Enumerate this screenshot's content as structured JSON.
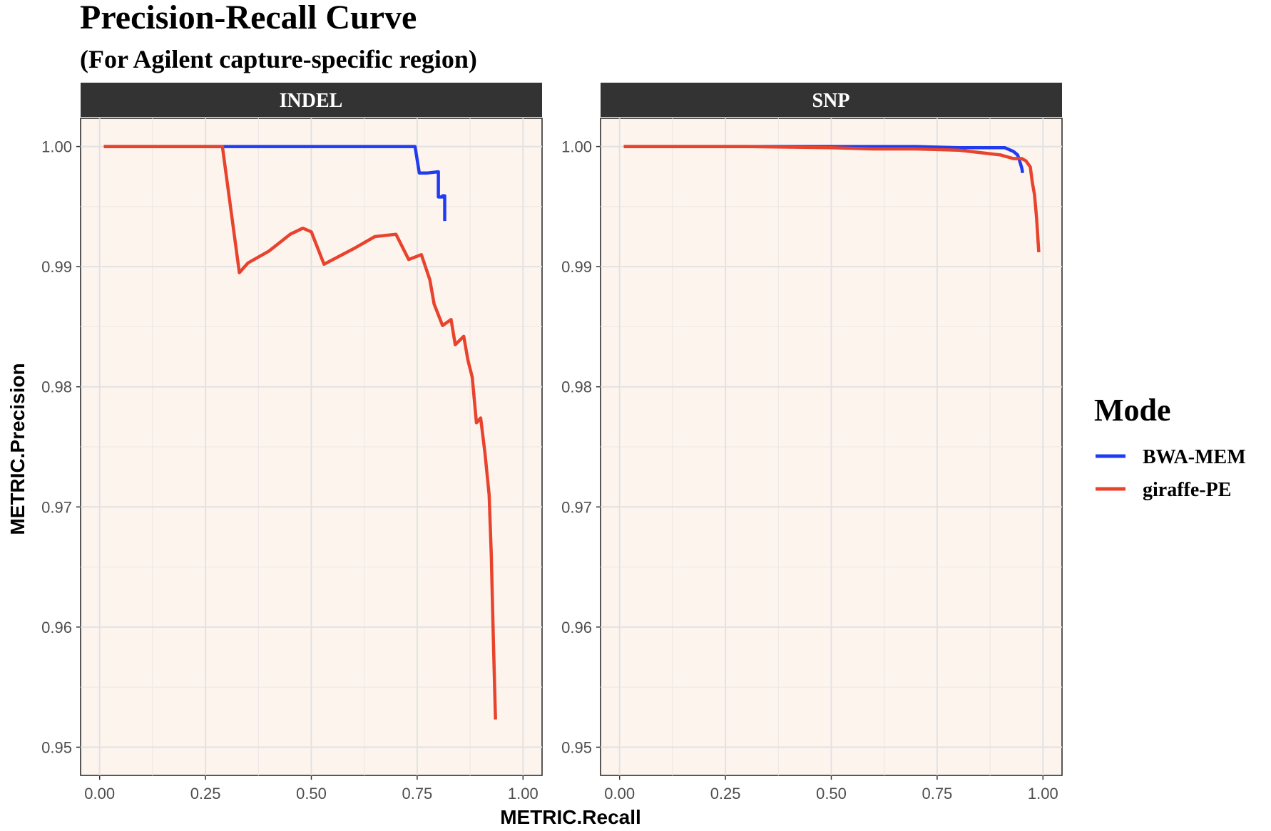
{
  "chart_data": {
    "type": "line",
    "title": "Precision-Recall Curve",
    "subtitle": "(For Agilent capture-specific region)",
    "xlabel": "METRIC.Recall",
    "ylabel": "METRIC.Precision",
    "xlim": [
      0,
      1
    ],
    "ylim": [
      0.95,
      1.0
    ],
    "x_ticks": [
      "0.00",
      "0.25",
      "0.50",
      "0.75",
      "1.00"
    ],
    "y_ticks": [
      "0.95",
      "0.96",
      "0.97",
      "0.98",
      "0.99",
      "1.00"
    ],
    "grid": true,
    "legend": {
      "title": "Mode",
      "position": "right",
      "entries": [
        {
          "name": "BWA-MEM",
          "color": "#1f3cf0"
        },
        {
          "name": "giraffe-PE",
          "color": "#e8432d"
        }
      ]
    },
    "panels": [
      {
        "label": "INDEL",
        "series": [
          {
            "name": "BWA-MEM",
            "x": [
              0.01,
              0.745,
              0.755,
              0.775,
              0.8,
              0.8,
              0.81,
              0.81,
              0.815,
              0.815
            ],
            "y": [
              1.0,
              1.0,
              0.9978,
              0.9978,
              0.9979,
              0.9958,
              0.9958,
              0.9959,
              0.9959,
              0.9938
            ]
          },
          {
            "name": "giraffe-PE",
            "x": [
              0.01,
              0.29,
              0.33,
              0.35,
              0.4,
              0.45,
              0.48,
              0.5,
              0.53,
              0.6,
              0.65,
              0.7,
              0.73,
              0.76,
              0.78,
              0.79,
              0.81,
              0.83,
              0.84,
              0.86,
              0.87,
              0.88,
              0.89,
              0.9,
              0.91,
              0.92,
              0.925,
              0.93,
              0.935
            ],
            "y": [
              1.0,
              1.0,
              0.9895,
              0.9903,
              0.9913,
              0.9927,
              0.9932,
              0.9929,
              0.9902,
              0.9915,
              0.9925,
              0.9927,
              0.9906,
              0.991,
              0.9889,
              0.9869,
              0.9851,
              0.9856,
              0.9835,
              0.9842,
              0.9822,
              0.9808,
              0.977,
              0.9774,
              0.9745,
              0.971,
              0.966,
              0.959,
              0.9523
            ]
          }
        ]
      },
      {
        "label": "SNP",
        "series": [
          {
            "name": "BWA-MEM",
            "x": [
              0.01,
              0.3,
              0.5,
              0.7,
              0.8,
              0.88,
              0.91,
              0.93,
              0.94,
              0.945,
              0.95,
              0.952
            ],
            "y": [
              1.0,
              1.0,
              1.0,
              1.0,
              0.9999,
              0.9999,
              0.9999,
              0.9996,
              0.9993,
              0.9988,
              0.9982,
              0.9978
            ]
          },
          {
            "name": "giraffe-PE",
            "x": [
              0.01,
              0.3,
              0.5,
              0.6,
              0.7,
              0.8,
              0.85,
              0.9,
              0.93,
              0.95,
              0.96,
              0.97,
              0.975,
              0.98,
              0.985,
              0.99
            ],
            "y": [
              1.0,
              1.0,
              0.9999,
              0.9998,
              0.9998,
              0.9997,
              0.9995,
              0.9993,
              0.999,
              0.999,
              0.9988,
              0.9983,
              0.997,
              0.996,
              0.994,
              0.9912
            ]
          }
        ]
      }
    ]
  }
}
